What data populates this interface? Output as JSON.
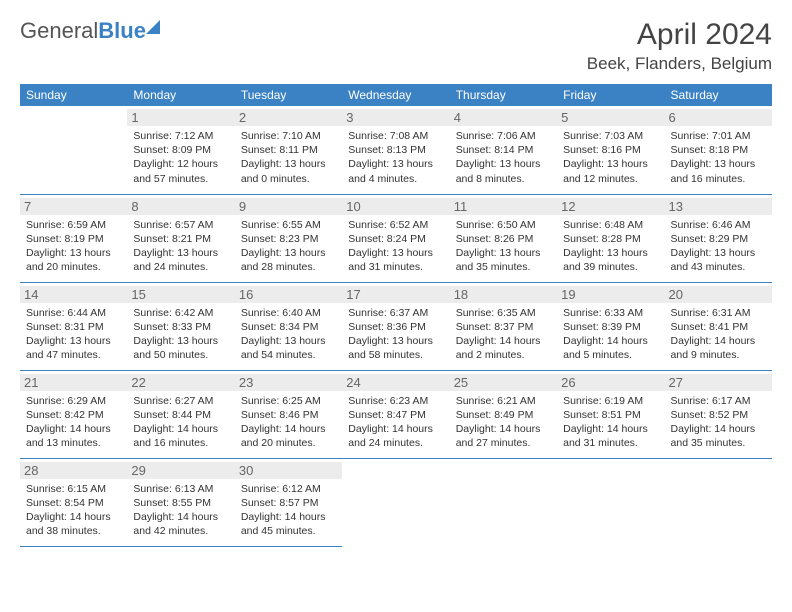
{
  "logo": {
    "word1": "General",
    "word2": "Blue"
  },
  "title": "April 2024",
  "location": "Beek, Flanders, Belgium",
  "colors": {
    "header_bg": "#3b82c4",
    "header_text": "#ffffff",
    "daynum_bg": "#ececec",
    "daynum_text": "#666666",
    "border": "#3b82c4",
    "body_text": "#333333"
  },
  "weekdays": [
    "Sunday",
    "Monday",
    "Tuesday",
    "Wednesday",
    "Thursday",
    "Friday",
    "Saturday"
  ],
  "weeks": [
    [
      null,
      {
        "n": "1",
        "sr": "Sunrise: 7:12 AM",
        "ss": "Sunset: 8:09 PM",
        "dl": "Daylight: 12 hours and 57 minutes."
      },
      {
        "n": "2",
        "sr": "Sunrise: 7:10 AM",
        "ss": "Sunset: 8:11 PM",
        "dl": "Daylight: 13 hours and 0 minutes."
      },
      {
        "n": "3",
        "sr": "Sunrise: 7:08 AM",
        "ss": "Sunset: 8:13 PM",
        "dl": "Daylight: 13 hours and 4 minutes."
      },
      {
        "n": "4",
        "sr": "Sunrise: 7:06 AM",
        "ss": "Sunset: 8:14 PM",
        "dl": "Daylight: 13 hours and 8 minutes."
      },
      {
        "n": "5",
        "sr": "Sunrise: 7:03 AM",
        "ss": "Sunset: 8:16 PM",
        "dl": "Daylight: 13 hours and 12 minutes."
      },
      {
        "n": "6",
        "sr": "Sunrise: 7:01 AM",
        "ss": "Sunset: 8:18 PM",
        "dl": "Daylight: 13 hours and 16 minutes."
      }
    ],
    [
      {
        "n": "7",
        "sr": "Sunrise: 6:59 AM",
        "ss": "Sunset: 8:19 PM",
        "dl": "Daylight: 13 hours and 20 minutes."
      },
      {
        "n": "8",
        "sr": "Sunrise: 6:57 AM",
        "ss": "Sunset: 8:21 PM",
        "dl": "Daylight: 13 hours and 24 minutes."
      },
      {
        "n": "9",
        "sr": "Sunrise: 6:55 AM",
        "ss": "Sunset: 8:23 PM",
        "dl": "Daylight: 13 hours and 28 minutes."
      },
      {
        "n": "10",
        "sr": "Sunrise: 6:52 AM",
        "ss": "Sunset: 8:24 PM",
        "dl": "Daylight: 13 hours and 31 minutes."
      },
      {
        "n": "11",
        "sr": "Sunrise: 6:50 AM",
        "ss": "Sunset: 8:26 PM",
        "dl": "Daylight: 13 hours and 35 minutes."
      },
      {
        "n": "12",
        "sr": "Sunrise: 6:48 AM",
        "ss": "Sunset: 8:28 PM",
        "dl": "Daylight: 13 hours and 39 minutes."
      },
      {
        "n": "13",
        "sr": "Sunrise: 6:46 AM",
        "ss": "Sunset: 8:29 PM",
        "dl": "Daylight: 13 hours and 43 minutes."
      }
    ],
    [
      {
        "n": "14",
        "sr": "Sunrise: 6:44 AM",
        "ss": "Sunset: 8:31 PM",
        "dl": "Daylight: 13 hours and 47 minutes."
      },
      {
        "n": "15",
        "sr": "Sunrise: 6:42 AM",
        "ss": "Sunset: 8:33 PM",
        "dl": "Daylight: 13 hours and 50 minutes."
      },
      {
        "n": "16",
        "sr": "Sunrise: 6:40 AM",
        "ss": "Sunset: 8:34 PM",
        "dl": "Daylight: 13 hours and 54 minutes."
      },
      {
        "n": "17",
        "sr": "Sunrise: 6:37 AM",
        "ss": "Sunset: 8:36 PM",
        "dl": "Daylight: 13 hours and 58 minutes."
      },
      {
        "n": "18",
        "sr": "Sunrise: 6:35 AM",
        "ss": "Sunset: 8:37 PM",
        "dl": "Daylight: 14 hours and 2 minutes."
      },
      {
        "n": "19",
        "sr": "Sunrise: 6:33 AM",
        "ss": "Sunset: 8:39 PM",
        "dl": "Daylight: 14 hours and 5 minutes."
      },
      {
        "n": "20",
        "sr": "Sunrise: 6:31 AM",
        "ss": "Sunset: 8:41 PM",
        "dl": "Daylight: 14 hours and 9 minutes."
      }
    ],
    [
      {
        "n": "21",
        "sr": "Sunrise: 6:29 AM",
        "ss": "Sunset: 8:42 PM",
        "dl": "Daylight: 14 hours and 13 minutes."
      },
      {
        "n": "22",
        "sr": "Sunrise: 6:27 AM",
        "ss": "Sunset: 8:44 PM",
        "dl": "Daylight: 14 hours and 16 minutes."
      },
      {
        "n": "23",
        "sr": "Sunrise: 6:25 AM",
        "ss": "Sunset: 8:46 PM",
        "dl": "Daylight: 14 hours and 20 minutes."
      },
      {
        "n": "24",
        "sr": "Sunrise: 6:23 AM",
        "ss": "Sunset: 8:47 PM",
        "dl": "Daylight: 14 hours and 24 minutes."
      },
      {
        "n": "25",
        "sr": "Sunrise: 6:21 AM",
        "ss": "Sunset: 8:49 PM",
        "dl": "Daylight: 14 hours and 27 minutes."
      },
      {
        "n": "26",
        "sr": "Sunrise: 6:19 AM",
        "ss": "Sunset: 8:51 PM",
        "dl": "Daylight: 14 hours and 31 minutes."
      },
      {
        "n": "27",
        "sr": "Sunrise: 6:17 AM",
        "ss": "Sunset: 8:52 PM",
        "dl": "Daylight: 14 hours and 35 minutes."
      }
    ],
    [
      {
        "n": "28",
        "sr": "Sunrise: 6:15 AM",
        "ss": "Sunset: 8:54 PM",
        "dl": "Daylight: 14 hours and 38 minutes."
      },
      {
        "n": "29",
        "sr": "Sunrise: 6:13 AM",
        "ss": "Sunset: 8:55 PM",
        "dl": "Daylight: 14 hours and 42 minutes."
      },
      {
        "n": "30",
        "sr": "Sunrise: 6:12 AM",
        "ss": "Sunset: 8:57 PM",
        "dl": "Daylight: 14 hours and 45 minutes."
      },
      null,
      null,
      null,
      null
    ]
  ]
}
